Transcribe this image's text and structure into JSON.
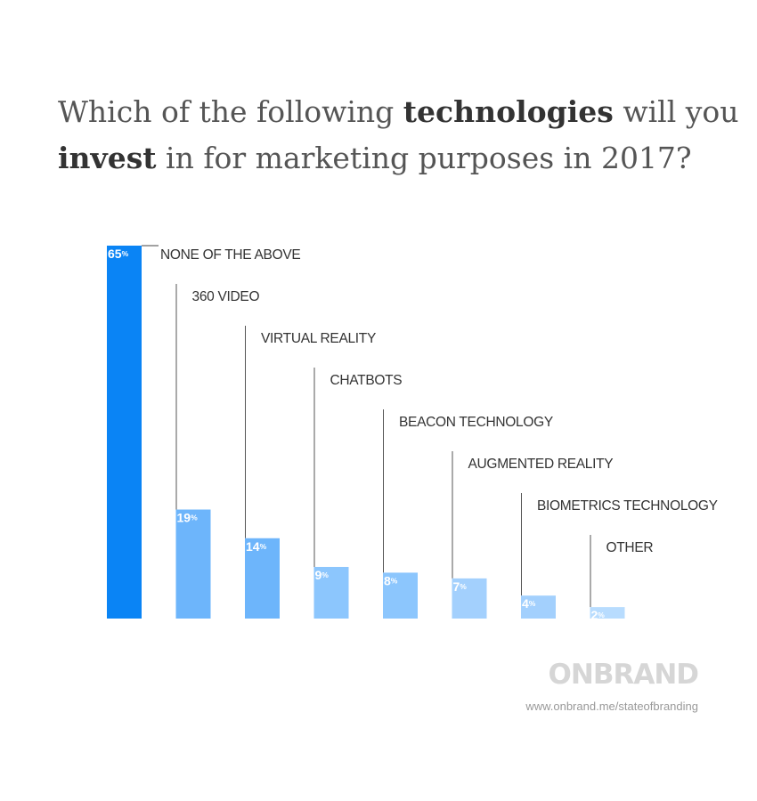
{
  "title": {
    "line1_pre": "Which of the following ",
    "line1_bold": "technologies",
    "line1_post": " will you",
    "line2_bold": "invest",
    "line2_post": " in for marketing purposes in 2017?"
  },
  "chart_data": {
    "type": "bar",
    "categories": [
      "NONE OF THE ABOVE",
      "360 VIDEO",
      "VIRTUAL REALITY",
      "CHATBOTS",
      "BEACON TECHNOLOGY",
      "AUGMENTED REALITY",
      "BIOMETRICS TECHNOLOGY",
      "OTHER"
    ],
    "values": [
      65,
      19,
      14,
      9,
      8,
      7,
      4,
      2
    ],
    "value_suffix": "%",
    "ylim": [
      0,
      65
    ],
    "grid": false,
    "legend": "none",
    "colors": [
      "#0a84f5",
      "#6db5fb",
      "#6db5fb",
      "#8cc6fd",
      "#8cc6fd",
      "#a3d0fd",
      "#a3d0fd",
      "#b8dcfe"
    ]
  },
  "brand": {
    "name": "ONBRAND",
    "url": "www.onbrand.me/stateofbranding",
    "color": "#d6d6d6"
  }
}
